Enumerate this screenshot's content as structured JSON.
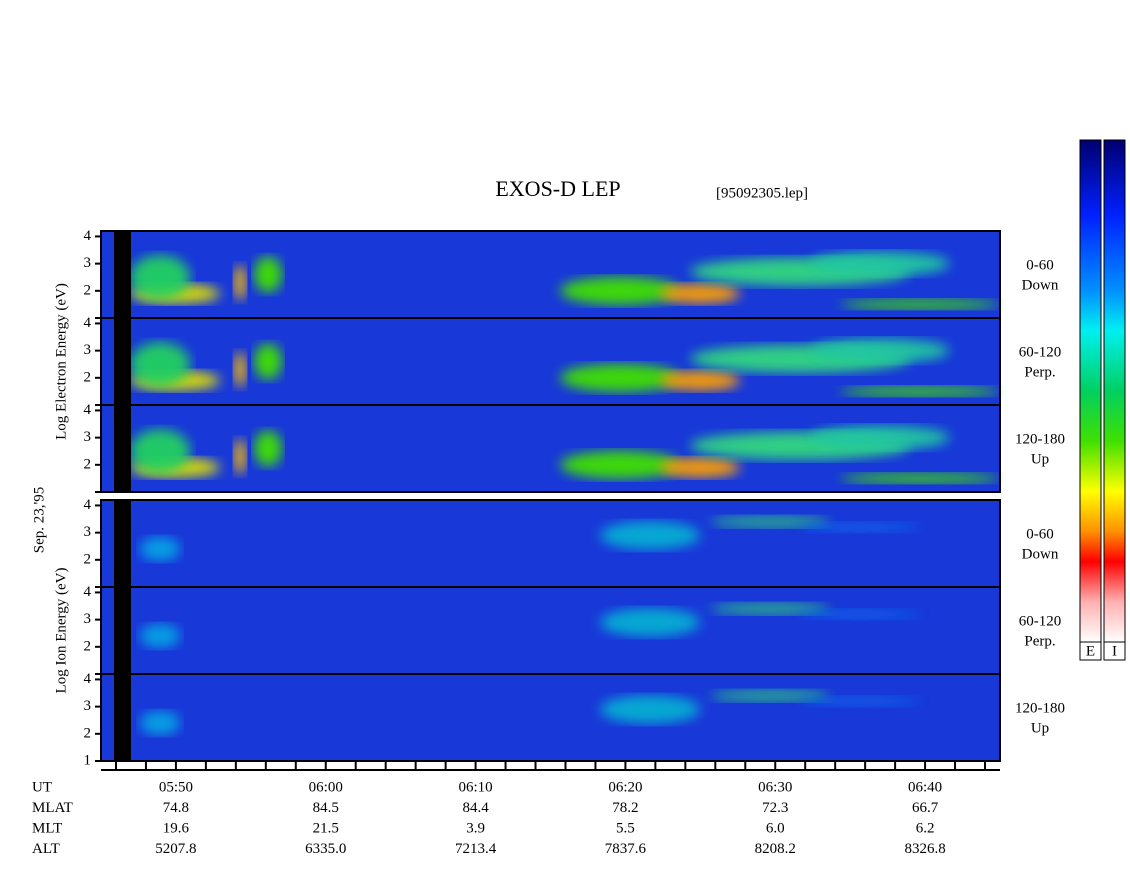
{
  "chart_data": {
    "type": "spectrogram",
    "title": "EXOS-D LEP",
    "file_label": "[95092305.lep]",
    "date_label": "Sep. 23,'95",
    "xlim": [
      345,
      405
    ],
    "xticks": [
      {
        "value": 350,
        "label": "05:50"
      },
      {
        "value": 360,
        "label": "06:00"
      },
      {
        "value": 370,
        "label": "06:10"
      },
      {
        "value": 380,
        "label": "06:20"
      },
      {
        "value": 390,
        "label": "06:30"
      },
      {
        "value": 400,
        "label": "06:40"
      }
    ],
    "xminorticks": [
      346,
      348,
      352,
      354,
      356,
      358,
      362,
      364,
      366,
      368,
      372,
      374,
      376,
      378,
      382,
      384,
      386,
      388,
      392,
      394,
      396,
      398,
      402,
      404
    ],
    "groups": [
      {
        "name": "Log  Electron  Energy  (eV)",
        "panels": [
          {
            "label": [
              "0-60",
              "Down"
            ],
            "ylim": [
              1,
              4.2
            ],
            "yticks": [
              2,
              3,
              4
            ],
            "yminorticks": [
              1
            ]
          },
          {
            "label": [
              "60-120",
              "Perp."
            ],
            "ylim": [
              1,
              4.2
            ],
            "yticks": [
              2,
              3,
              4
            ],
            "yminorticks": [
              1
            ]
          },
          {
            "label": [
              "120-180",
              "Up"
            ],
            "ylim": [
              1,
              4.2
            ],
            "yticks": [
              2,
              3,
              4
            ],
            "yminorticks": [
              1
            ]
          }
        ]
      },
      {
        "name": "Log  Ion  Energy  (eV)",
        "panels": [
          {
            "label": [
              "0-60",
              "Down"
            ],
            "ylim": [
              1,
              4.2
            ],
            "yticks": [
              2,
              3,
              4
            ],
            "yminorticks": [
              1
            ]
          },
          {
            "label": [
              "60-120",
              "Perp."
            ],
            "ylim": [
              1,
              4.2
            ],
            "yticks": [
              2,
              3,
              4
            ],
            "yminorticks": [
              1
            ]
          },
          {
            "label": [
              "120-180",
              "Up"
            ],
            "ylim": [
              1,
              4.2
            ],
            "yticks": [
              1,
              2,
              3,
              4
            ],
            "yminorticks": []
          }
        ]
      }
    ],
    "ephemeris": [
      {
        "label": "UT"
      },
      {
        "label": "MLAT",
        "values": [
          "74.8",
          "84.5",
          "84.4",
          "78.2",
          "72.3",
          "66.7"
        ]
      },
      {
        "label": "MLT",
        "values": [
          "19.6",
          "21.5",
          "3.9",
          "5.5",
          "6.0",
          "6.2"
        ]
      },
      {
        "label": "ALT",
        "values": [
          "5207.8",
          "6335.0",
          "7213.4",
          "7837.6",
          "8208.2",
          "8326.8"
        ]
      }
    ],
    "colorbars": [
      "E",
      "I"
    ]
  }
}
